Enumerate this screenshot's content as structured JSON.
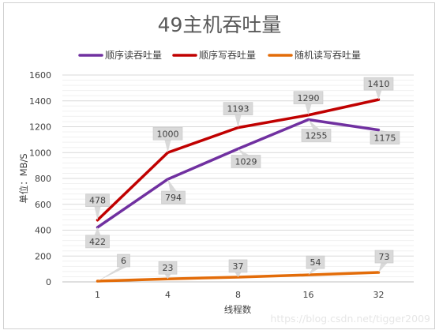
{
  "chart_data": {
    "type": "line",
    "title": "49主机吞吐量",
    "xlabel": "线程数",
    "ylabel": "单位：MB/S",
    "categories": [
      "1",
      "4",
      "8",
      "16",
      "32"
    ],
    "ylim": [
      0,
      1600
    ],
    "ytick_step": 200,
    "grid": true,
    "legend_position": "top",
    "series": [
      {
        "name": "顺序读吞吐量",
        "color": "#7030a0",
        "values": [
          422,
          794,
          1029,
          1255,
          1175
        ]
      },
      {
        "name": "顺序写吞吐量",
        "color": "#c00000",
        "values": [
          478,
          1000,
          1193,
          1290,
          1410
        ]
      },
      {
        "name": "随机读写吞吐量",
        "color": "#e36c09",
        "values": [
          6,
          23,
          37,
          54,
          73
        ]
      }
    ]
  },
  "watermark": "https://blog.csdn.net/tigger2009"
}
